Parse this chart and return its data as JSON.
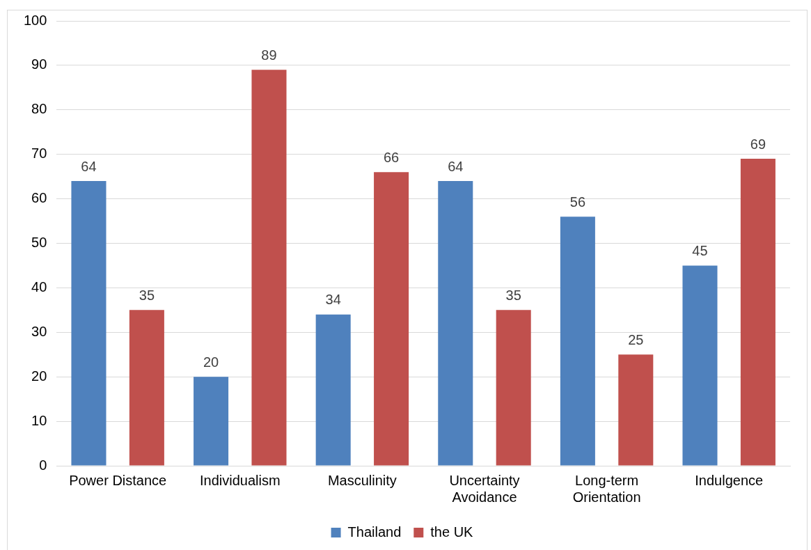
{
  "chart_data": {
    "type": "bar",
    "categories": [
      "Power Distance",
      "Individualism",
      "Masculinity",
      "Uncertainty Avoidance",
      "Long-term Orientation",
      "Indulgence"
    ],
    "series": [
      {
        "name": "Thailand",
        "color": "#4f81bd",
        "values": [
          64,
          20,
          34,
          64,
          56,
          45
        ]
      },
      {
        "name": "the UK",
        "color": "#c0504d",
        "values": [
          35,
          89,
          66,
          35,
          25,
          69
        ]
      }
    ],
    "ylim": [
      0,
      100
    ],
    "yticks": [
      0,
      10,
      20,
      30,
      40,
      50,
      60,
      70,
      80,
      90,
      100
    ],
    "grid": "y",
    "legend": "bottom",
    "data_labels": true
  }
}
